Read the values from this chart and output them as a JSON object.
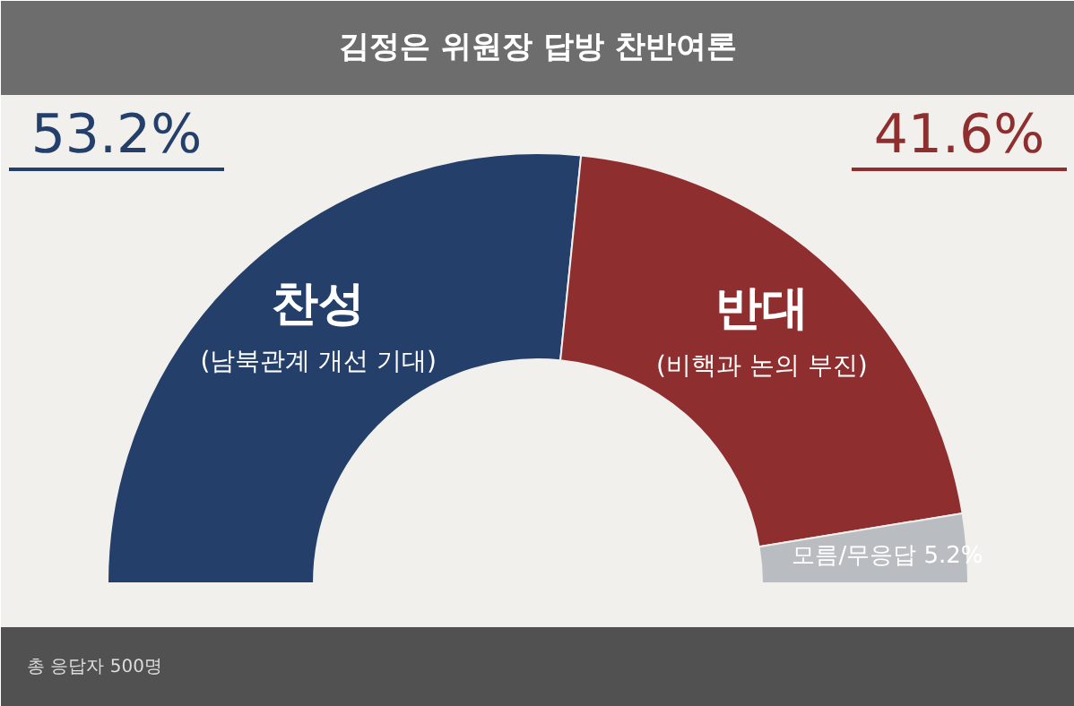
{
  "chart_data": {
    "type": "donut",
    "title": "김정은 위원장 답방 찬반여론",
    "categories": [
      "찬성",
      "반대",
      "모름/무응답"
    ],
    "values": [
      53.2,
      41.6,
      5.2
    ],
    "colors": [
      "#253f6b",
      "#8f2e2e",
      "#b9bdc1"
    ],
    "value_labels": [
      "53.2%",
      "41.6%",
      "5.2%"
    ],
    "annotations": [
      {
        "text": "(남북관계 개선 기대)",
        "x": "찬성"
      },
      {
        "text": "(비핵과 논의 부진)",
        "x": "반대"
      },
      "총 응답자 500명"
    ]
  }
}
